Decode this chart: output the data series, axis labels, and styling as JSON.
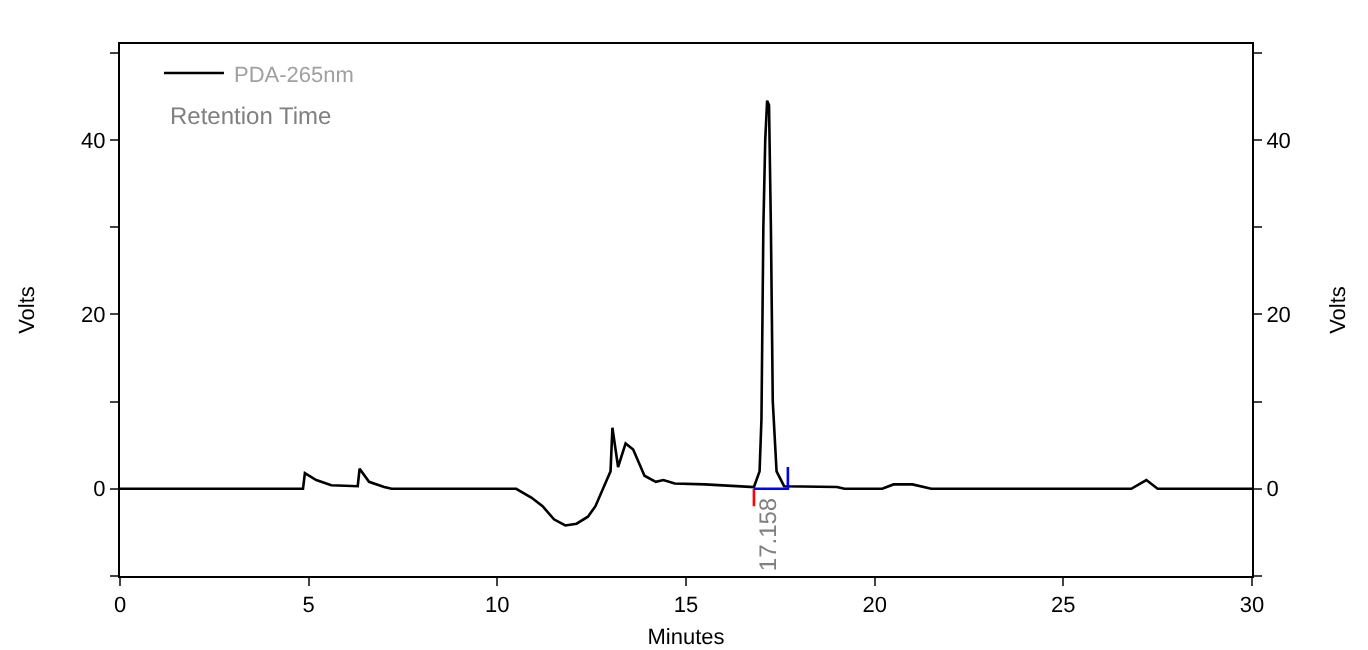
{
  "chart_data": {
    "type": "line",
    "xlabel": "Minutes",
    "ylabel": "Volts",
    "y2label": "Volts",
    "xlim": [
      0,
      30
    ],
    "xticks": [
      0,
      5,
      10,
      15,
      20,
      25,
      30
    ],
    "ylim": [
      -10,
      51
    ],
    "yticks": [
      {
        "value": -10,
        "label": null
      },
      0,
      {
        "value": 10,
        "label": null
      },
      20,
      {
        "value": 30,
        "label": null
      },
      40,
      {
        "value": 50,
        "label": null
      }
    ],
    "y2lim": [
      -10,
      51
    ],
    "y2ticks": [
      {
        "value": -10,
        "label": null
      },
      0,
      {
        "value": 10,
        "label": null
      },
      20,
      {
        "value": 30,
        "label": null
      },
      40,
      {
        "value": 50,
        "label": null
      }
    ],
    "legend": "top left",
    "annotations": [
      "Retention Time",
      {
        "text": "17.158",
        "x": 17.158,
        "y": 0
      }
    ],
    "series": [
      {
        "name": "PDA-265nm",
        "color": "#000000",
        "x": [
          0,
          4.85,
          4.9,
          5.2,
          5.6,
          6.3,
          6.35,
          6.6,
          7.0,
          7.2,
          10.5,
          10.9,
          11.2,
          11.5,
          11.8,
          12.1,
          12.4,
          12.6,
          12.9,
          13.0,
          13.05,
          13.2,
          13.4,
          13.6,
          13.9,
          14.2,
          14.4,
          14.7,
          15.5,
          16.8,
          16.95,
          17.0,
          17.05,
          17.1,
          17.15,
          17.2,
          17.25,
          17.3,
          17.4,
          17.6,
          19.0,
          19.2,
          20.2,
          20.5,
          21.0,
          21.5,
          26.8,
          27.2,
          27.5,
          30
        ],
        "values": [
          0,
          0,
          1.8,
          1.0,
          0.4,
          0.3,
          2.3,
          0.8,
          0.2,
          0,
          0,
          -1.0,
          -2.0,
          -3.5,
          -4.2,
          -4.0,
          -3.2,
          -2.0,
          1.0,
          2.0,
          7.0,
          2.5,
          5.2,
          4.5,
          1.5,
          0.8,
          1.0,
          0.6,
          0.5,
          0.2,
          2,
          8,
          30,
          40,
          44.5,
          44,
          30,
          10,
          2,
          0.3,
          0.2,
          0,
          0,
          0.5,
          0.5,
          0,
          0,
          1.0,
          0,
          0
        ]
      },
      {
        "color": "#ff0000",
        "x": [
          16.8,
          16.8
        ],
        "values": [
          -2,
          0
        ]
      },
      {
        "color": "#0000ff",
        "x": [
          16.8,
          17.7,
          17.7
        ],
        "values": [
          0,
          0,
          2.5
        ]
      }
    ]
  }
}
